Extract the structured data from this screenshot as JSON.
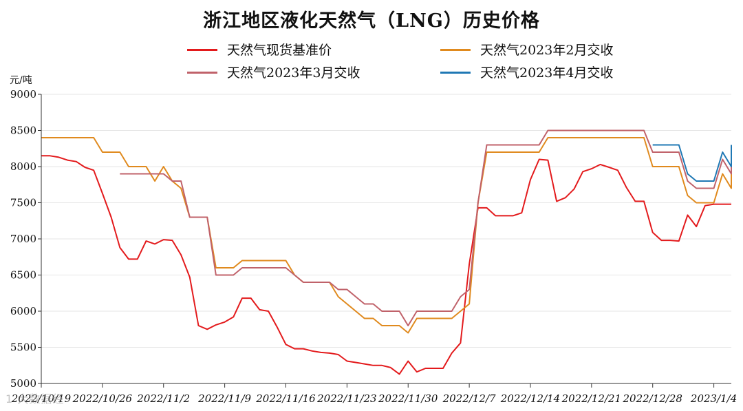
{
  "chart_data": {
    "type": "line",
    "title": "浙江地区液化天然气（LNG）历史价格",
    "ylabel": "元/吨",
    "ylim": [
      5000,
      9000
    ],
    "yticks": [
      5000,
      5500,
      6000,
      6500,
      7000,
      7500,
      8000,
      8500,
      9000
    ],
    "xlim": [
      "2022-10-19",
      "2023-01-06"
    ],
    "xticks": [
      "2022/10/19",
      "2022/10/26",
      "2022/11/2",
      "2022/11/9",
      "2022/11/16",
      "2022/11/23",
      "2022/11/30",
      "2022/12/7",
      "2022/12/14",
      "2022/12/21",
      "2022/12/28",
      "2023/1/4"
    ],
    "grid": "horizontal",
    "legend_position": "top",
    "series": [
      {
        "name": "天然气现货基准价",
        "color": "#e31a1c",
        "points": [
          [
            "2022-10-19",
            8150
          ],
          [
            "2022-10-20",
            8150
          ],
          [
            "2022-10-21",
            8130
          ],
          [
            "2022-10-22",
            8090
          ],
          [
            "2022-10-23",
            8070
          ],
          [
            "2022-10-24",
            7990
          ],
          [
            "2022-10-25",
            7950
          ],
          [
            "2022-10-26",
            7630
          ],
          [
            "2022-10-27",
            7300
          ],
          [
            "2022-10-28",
            6880
          ],
          [
            "2022-10-29",
            6720
          ],
          [
            "2022-10-30",
            6720
          ],
          [
            "2022-10-31",
            6970
          ],
          [
            "2022-11-01",
            6930
          ],
          [
            "2022-11-02",
            6990
          ],
          [
            "2022-11-03",
            6980
          ],
          [
            "2022-11-04",
            6780
          ],
          [
            "2022-11-05",
            6470
          ],
          [
            "2022-11-06",
            5800
          ],
          [
            "2022-11-07",
            5750
          ],
          [
            "2022-11-08",
            5810
          ],
          [
            "2022-11-09",
            5850
          ],
          [
            "2022-11-10",
            5920
          ],
          [
            "2022-11-11",
            6180
          ],
          [
            "2022-11-12",
            6180
          ],
          [
            "2022-11-13",
            6020
          ],
          [
            "2022-11-14",
            6000
          ],
          [
            "2022-11-15",
            5780
          ],
          [
            "2022-11-16",
            5540
          ],
          [
            "2022-11-17",
            5480
          ],
          [
            "2022-11-18",
            5480
          ],
          [
            "2022-11-19",
            5450
          ],
          [
            "2022-11-20",
            5430
          ],
          [
            "2022-11-21",
            5420
          ],
          [
            "2022-11-22",
            5400
          ],
          [
            "2022-11-23",
            5310
          ],
          [
            "2022-11-24",
            5290
          ],
          [
            "2022-11-25",
            5270
          ],
          [
            "2022-11-26",
            5250
          ],
          [
            "2022-11-27",
            5250
          ],
          [
            "2022-11-28",
            5220
          ],
          [
            "2022-11-29",
            5130
          ],
          [
            "2022-11-30",
            5310
          ],
          [
            "2022-12-01",
            5160
          ],
          [
            "2022-12-02",
            5210
          ],
          [
            "2022-12-03",
            5210
          ],
          [
            "2022-12-04",
            5210
          ],
          [
            "2022-12-05",
            5420
          ],
          [
            "2022-12-06",
            5560
          ],
          [
            "2022-12-07",
            6650
          ],
          [
            "2022-12-08",
            7430
          ],
          [
            "2022-12-09",
            7430
          ],
          [
            "2022-12-10",
            7320
          ],
          [
            "2022-12-11",
            7320
          ],
          [
            "2022-12-12",
            7320
          ],
          [
            "2022-12-13",
            7360
          ],
          [
            "2022-12-14",
            7820
          ],
          [
            "2022-12-15",
            8100
          ],
          [
            "2022-12-16",
            8090
          ],
          [
            "2022-12-17",
            7520
          ],
          [
            "2022-12-18",
            7570
          ],
          [
            "2022-12-19",
            7690
          ],
          [
            "2022-12-20",
            7930
          ],
          [
            "2022-12-21",
            7970
          ],
          [
            "2022-12-22",
            8030
          ],
          [
            "2022-12-23",
            7990
          ],
          [
            "2022-12-24",
            7950
          ],
          [
            "2022-12-25",
            7710
          ],
          [
            "2022-12-26",
            7520
          ],
          [
            "2022-12-27",
            7520
          ],
          [
            "2022-12-28",
            7090
          ],
          [
            "2022-12-29",
            6980
          ],
          [
            "2022-12-30",
            6980
          ],
          [
            "2022-12-31",
            6970
          ],
          [
            "2023-01-01",
            7330
          ],
          [
            "2023-01-02",
            7170
          ],
          [
            "2023-01-03",
            7460
          ],
          [
            "2023-01-04",
            7480
          ],
          [
            "2023-01-05",
            7480
          ],
          [
            "2023-01-06",
            7480
          ]
        ]
      },
      {
        "name": "天然气2023年2月交收",
        "color": "#e08a1e",
        "points": [
          [
            "2022-10-19",
            8400
          ],
          [
            "2022-10-25",
            8400
          ],
          [
            "2022-10-26",
            8200
          ],
          [
            "2022-10-28",
            8200
          ],
          [
            "2022-10-29",
            8000
          ],
          [
            "2022-10-31",
            8000
          ],
          [
            "2022-11-01",
            7800
          ],
          [
            "2022-11-02",
            8000
          ],
          [
            "2022-11-03",
            7800
          ],
          [
            "2022-11-04",
            7700
          ],
          [
            "2022-11-05",
            7300
          ],
          [
            "2022-11-07",
            7300
          ],
          [
            "2022-11-08",
            6600
          ],
          [
            "2022-11-10",
            6600
          ],
          [
            "2022-11-11",
            6700
          ],
          [
            "2022-11-16",
            6700
          ],
          [
            "2022-11-17",
            6500
          ],
          [
            "2022-11-18",
            6400
          ],
          [
            "2022-11-21",
            6400
          ],
          [
            "2022-11-22",
            6200
          ],
          [
            "2022-11-23",
            6100
          ],
          [
            "2022-11-24",
            6000
          ],
          [
            "2022-11-25",
            5900
          ],
          [
            "2022-11-26",
            5900
          ],
          [
            "2022-11-27",
            5800
          ],
          [
            "2022-11-29",
            5800
          ],
          [
            "2022-11-30",
            5700
          ],
          [
            "2022-12-01",
            5900
          ],
          [
            "2022-12-05",
            5900
          ],
          [
            "2022-12-06",
            6000
          ],
          [
            "2022-12-07",
            6100
          ],
          [
            "2022-12-08",
            7500
          ],
          [
            "2022-12-09",
            8200
          ],
          [
            "2022-12-15",
            8200
          ],
          [
            "2022-12-16",
            8400
          ],
          [
            "2022-12-27",
            8400
          ],
          [
            "2022-12-28",
            8000
          ],
          [
            "2022-12-31",
            8000
          ],
          [
            "2023-01-01",
            7600
          ],
          [
            "2023-01-02",
            7500
          ],
          [
            "2023-01-04",
            7500
          ],
          [
            "2023-01-05",
            7900
          ],
          [
            "2023-01-06",
            7700
          ],
          [
            "2023-01-07",
            8000
          ],
          [
            "2023-01-09",
            8000
          ]
        ]
      },
      {
        "name": "天然气2023年3月交收",
        "color": "#c0626a",
        "points": [
          [
            "2022-10-28",
            7900
          ],
          [
            "2022-11-02",
            7900
          ],
          [
            "2022-11-03",
            7800
          ],
          [
            "2022-11-04",
            7800
          ],
          [
            "2022-11-05",
            7300
          ],
          [
            "2022-11-07",
            7300
          ],
          [
            "2022-11-08",
            6500
          ],
          [
            "2022-11-10",
            6500
          ],
          [
            "2022-11-11",
            6600
          ],
          [
            "2022-11-16",
            6600
          ],
          [
            "2022-11-17",
            6500
          ],
          [
            "2022-11-18",
            6400
          ],
          [
            "2022-11-21",
            6400
          ],
          [
            "2022-11-22",
            6300
          ],
          [
            "2022-11-23",
            6300
          ],
          [
            "2022-11-24",
            6200
          ],
          [
            "2022-11-25",
            6100
          ],
          [
            "2022-11-26",
            6100
          ],
          [
            "2022-11-27",
            6000
          ],
          [
            "2022-11-29",
            6000
          ],
          [
            "2022-11-30",
            5800
          ],
          [
            "2022-12-01",
            6000
          ],
          [
            "2022-12-05",
            6000
          ],
          [
            "2022-12-06",
            6200
          ],
          [
            "2022-12-07",
            6300
          ],
          [
            "2022-12-08",
            7500
          ],
          [
            "2022-12-09",
            8300
          ],
          [
            "2022-12-15",
            8300
          ],
          [
            "2022-12-16",
            8500
          ],
          [
            "2022-12-27",
            8500
          ],
          [
            "2022-12-28",
            8200
          ],
          [
            "2022-12-31",
            8200
          ],
          [
            "2023-01-01",
            7800
          ],
          [
            "2023-01-02",
            7700
          ],
          [
            "2023-01-04",
            7700
          ],
          [
            "2023-01-05",
            8100
          ],
          [
            "2023-01-06",
            7900
          ],
          [
            "2023-01-07",
            8200
          ],
          [
            "2023-01-09",
            8200
          ]
        ]
      },
      {
        "name": "天然气2023年4月交收",
        "color": "#1f78b4",
        "points": [
          [
            "2022-12-28",
            8300
          ],
          [
            "2022-12-31",
            8300
          ],
          [
            "2023-01-01",
            7900
          ],
          [
            "2023-01-02",
            7800
          ],
          [
            "2023-01-04",
            7800
          ],
          [
            "2023-01-05",
            8200
          ],
          [
            "2023-01-06",
            8000
          ],
          [
            "2023-01-07",
            8300
          ],
          [
            "2023-01-09",
            8300
          ]
        ]
      }
    ]
  },
  "watermark": "1 大数据经"
}
